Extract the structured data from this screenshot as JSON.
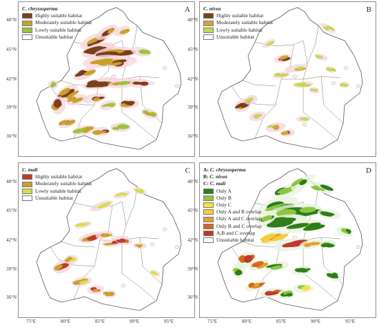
{
  "lat_labels": [
    "48°N",
    "45°N",
    "42°N",
    "39°N",
    "36°N"
  ],
  "lon_labels": [
    "75°E",
    "80°E",
    "85°E",
    "90°E",
    "95°E"
  ],
  "panels": [
    {
      "letter": "A",
      "species": "C. chrysosperma",
      "legend": [
        "Highly suitable habitat",
        "Moderately suitable habitat",
        "Lowly suitable habitat",
        "Unsuitable habitat"
      ],
      "colors": [
        "#7b3f1e",
        "#c8a12a",
        "#9bc43c",
        "#ffffff"
      ]
    },
    {
      "letter": "B",
      "species": "C. nivea",
      "legend": [
        "Highly suitable habitat",
        "Moderately suitable habitat",
        "Lowly suitable habitat",
        "Unsuitable habitat"
      ],
      "colors": [
        "#7b3f1e",
        "#d4a43a",
        "#c3d855",
        "#ffffff"
      ]
    },
    {
      "letter": "C",
      "species": "C. mali",
      "legend": [
        "Highly suitable habitat",
        "Moderately suitable habitat",
        "Lowly suitable habitat",
        "Unsuitable habitat"
      ],
      "colors": [
        "#c0392b",
        "#c8a12a",
        "#d3e04a",
        "#ffffff"
      ]
    },
    {
      "letter": "D",
      "species_lines": [
        {
          "prefix": "A: ",
          "name": "C. chrysosperma"
        },
        {
          "prefix": "B: ",
          "name": "C. nivea"
        },
        {
          "prefix": "C: ",
          "name": "C. mali"
        }
      ],
      "legend": [
        "Only A",
        "Only B",
        "Only C",
        "Only A and B overlap",
        "Only A and C overlap",
        "Only B and C overlap",
        "A,B and C overlap",
        "Unsuitable habitat"
      ],
      "colors": [
        "#2e7d1a",
        "#8dc63f",
        "#f2e34a",
        "#f0d040",
        "#e8a030",
        "#d2691e",
        "#c0392b",
        "#ffffff"
      ]
    }
  ]
}
